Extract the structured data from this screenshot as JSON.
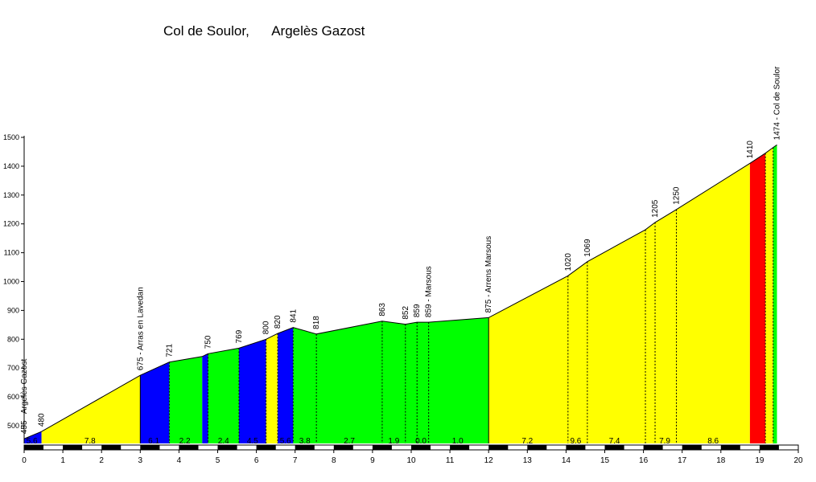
{
  "title": "Col de Soulor,      Argelès Gazost",
  "chart_data": {
    "type": "area",
    "title": "Col de Soulor,      Argelès Gazost",
    "xlim": [
      0,
      20
    ],
    "ylim": [
      420,
      1500
    ],
    "xticks": [
      0,
      1,
      2,
      3,
      4,
      5,
      6,
      7,
      8,
      9,
      10,
      11,
      12,
      13,
      14,
      15,
      16,
      17,
      18,
      19,
      20
    ],
    "yticks": [
      500,
      600,
      700,
      800,
      900,
      1000,
      1100,
      1200,
      1300,
      1400,
      1500
    ],
    "profile": [
      {
        "x": 0.0,
        "y": 455,
        "label": "455 - Argelès Gazost"
      },
      {
        "x": 0.45,
        "y": 480,
        "label": "480"
      },
      {
        "x": 3.0,
        "y": 675,
        "label": "675 - Arras en Lavedan"
      },
      {
        "x": 3.75,
        "y": 721,
        "label": "721"
      },
      {
        "x": 4.6,
        "y": 740,
        "label": ""
      },
      {
        "x": 4.75,
        "y": 750,
        "label": "750"
      },
      {
        "x": 5.55,
        "y": 769,
        "label": "769"
      },
      {
        "x": 6.25,
        "y": 800,
        "label": "800"
      },
      {
        "x": 6.55,
        "y": 820,
        "label": "820"
      },
      {
        "x": 6.95,
        "y": 841,
        "label": "841"
      },
      {
        "x": 7.55,
        "y": 818,
        "label": "818"
      },
      {
        "x": 9.25,
        "y": 863,
        "label": "863"
      },
      {
        "x": 9.85,
        "y": 852,
        "label": "852"
      },
      {
        "x": 10.15,
        "y": 859,
        "label": "859"
      },
      {
        "x": 10.45,
        "y": 859,
        "label": "859 - Marsous"
      },
      {
        "x": 12.0,
        "y": 875,
        "label": "875 - Arrens Marsous"
      },
      {
        "x": 14.05,
        "y": 1020,
        "label": "1020"
      },
      {
        "x": 14.55,
        "y": 1069,
        "label": "1069"
      },
      {
        "x": 16.05,
        "y": 1180,
        "label": ""
      },
      {
        "x": 16.3,
        "y": 1205,
        "label": "1205"
      },
      {
        "x": 16.85,
        "y": 1250,
        "label": "1250"
      },
      {
        "x": 18.75,
        "y": 1410,
        "label": "1410"
      },
      {
        "x": 19.15,
        "y": 1445,
        "label": ""
      },
      {
        "x": 19.35,
        "y": 1465,
        "label": ""
      },
      {
        "x": 19.45,
        "y": 1474,
        "label": "1474 - Col de Soulor"
      }
    ],
    "segments": [
      {
        "x0": 0.0,
        "x1": 0.45,
        "color": "#0000ff"
      },
      {
        "x0": 0.45,
        "x1": 3.0,
        "color": "#ffff00"
      },
      {
        "x0": 3.0,
        "x1": 3.75,
        "color": "#0000ff"
      },
      {
        "x0": 3.75,
        "x1": 4.6,
        "color": "#00ff00"
      },
      {
        "x0": 4.6,
        "x1": 4.75,
        "color": "#0000ff"
      },
      {
        "x0": 4.75,
        "x1": 5.55,
        "color": "#00ff00"
      },
      {
        "x0": 5.55,
        "x1": 6.25,
        "color": "#0000ff"
      },
      {
        "x0": 6.25,
        "x1": 6.55,
        "color": "#ffff00"
      },
      {
        "x0": 6.55,
        "x1": 6.95,
        "color": "#0000ff"
      },
      {
        "x0": 6.95,
        "x1": 12.0,
        "color": "#00ff00"
      },
      {
        "x0": 12.0,
        "x1": 18.75,
        "color": "#ffff00"
      },
      {
        "x0": 18.75,
        "x1": 19.15,
        "color": "#ff0000"
      },
      {
        "x0": 19.15,
        "x1": 19.35,
        "color": "#ffff00"
      },
      {
        "x0": 19.35,
        "x1": 19.45,
        "color": "#00ff00"
      }
    ],
    "dashed_markers": [
      3.75,
      4.75,
      5.55,
      6.25,
      6.55,
      6.95,
      7.55,
      9.25,
      9.85,
      10.15,
      10.45,
      14.05,
      14.55,
      16.05,
      16.3,
      16.85,
      19.15,
      19.35
    ],
    "gradients": [
      {
        "x": 0.2,
        "label": "5.6"
      },
      {
        "x": 1.7,
        "label": "7.8"
      },
      {
        "x": 3.35,
        "label": "6.1"
      },
      {
        "x": 4.15,
        "label": "2.2"
      },
      {
        "x": 5.15,
        "label": "2.4"
      },
      {
        "x": 5.9,
        "label": "4.5"
      },
      {
        "x": 6.75,
        "label": "5.6"
      },
      {
        "x": 7.25,
        "label": "3.8"
      },
      {
        "x": 8.4,
        "label": "2.7"
      },
      {
        "x": 9.55,
        "label": "1.9"
      },
      {
        "x": 10.25,
        "label": "0.0"
      },
      {
        "x": 11.2,
        "label": "1.0"
      },
      {
        "x": 13.0,
        "label": "7.2"
      },
      {
        "x": 14.25,
        "label": "9.6"
      },
      {
        "x": 15.25,
        "label": "7.4"
      },
      {
        "x": 16.55,
        "label": "7.9"
      },
      {
        "x": 17.8,
        "label": "8.6"
      }
    ]
  }
}
